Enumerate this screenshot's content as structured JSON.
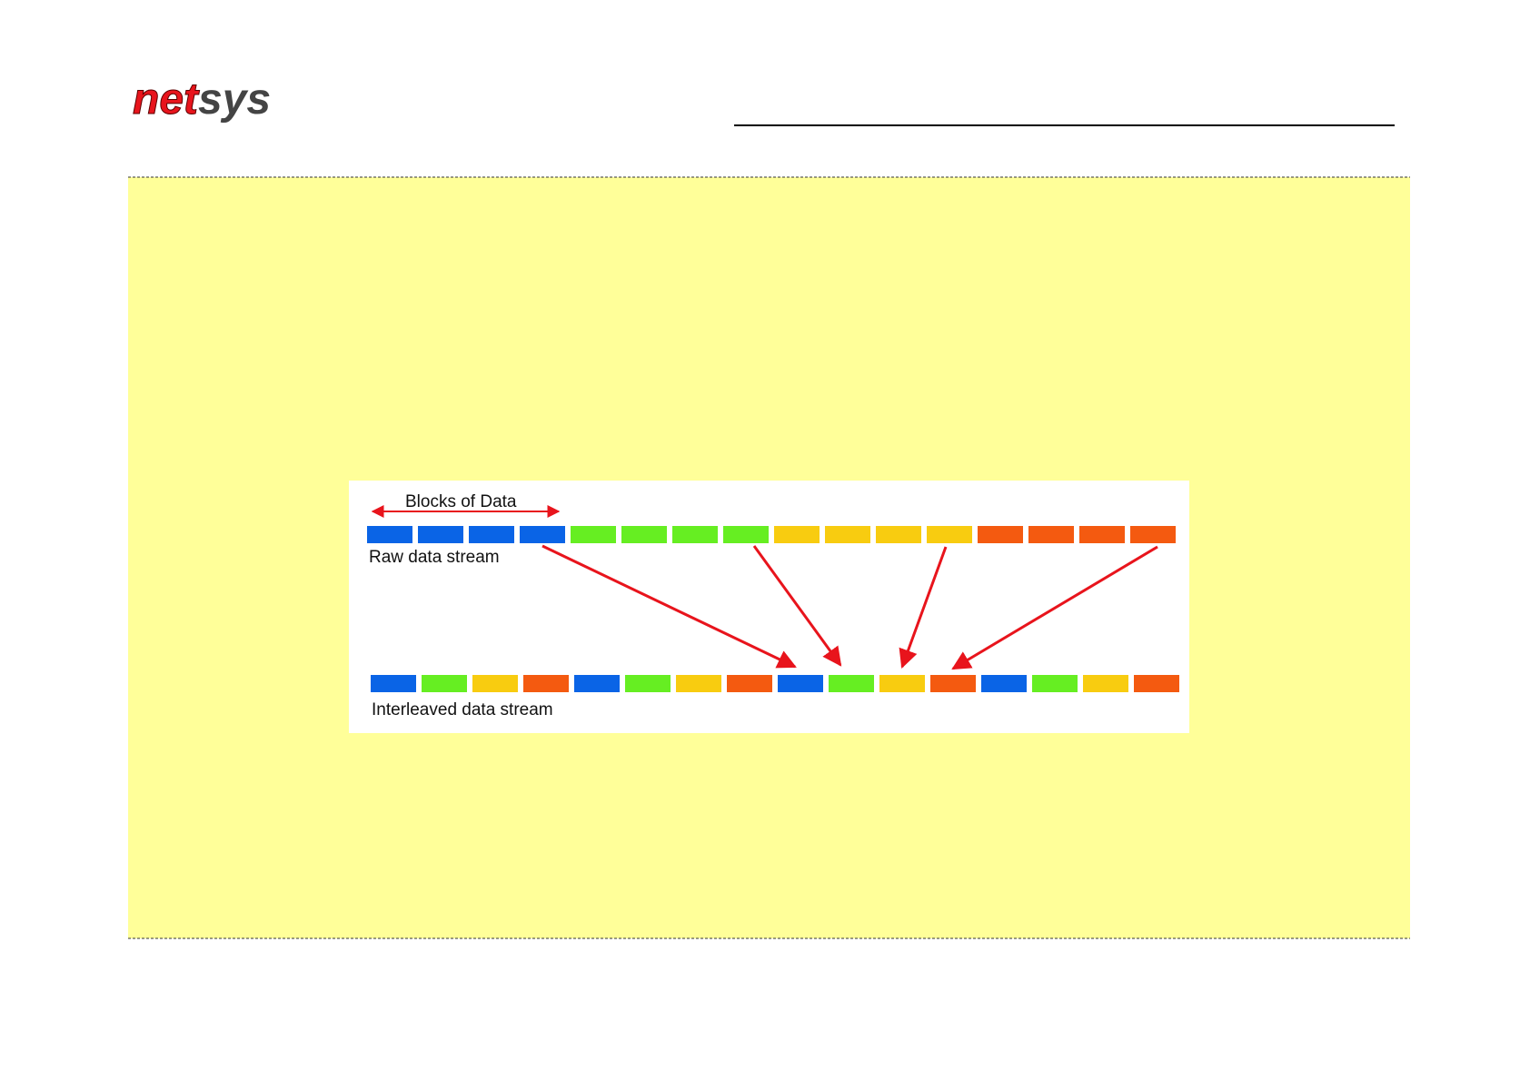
{
  "header": {
    "logo": {
      "part1": "net",
      "part2": "sys"
    }
  },
  "diagram": {
    "top_label": "Blocks of Data",
    "raw_label": "Raw data stream",
    "interleaved_label": "Interleaved data stream"
  }
}
